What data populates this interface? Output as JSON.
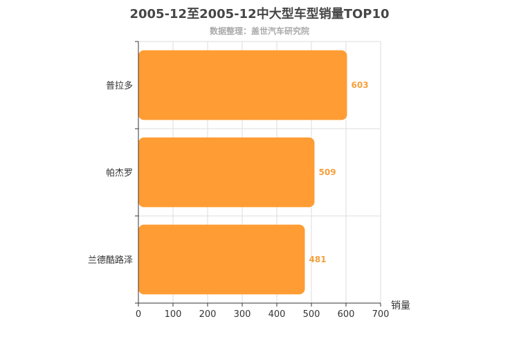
{
  "title": "2005-12至2005-12中大型车型销量TOP10",
  "subtitle": "数据整理：盖世汽车研究院",
  "chart_data": {
    "type": "bar",
    "orientation": "horizontal",
    "categories": [
      "普拉多",
      "帕杰罗",
      "兰德酷路泽"
    ],
    "values": [
      603,
      509,
      481
    ],
    "xlabel": "销量",
    "xlim": [
      0,
      700
    ],
    "xticks": [
      0,
      100,
      200,
      300,
      400,
      500,
      600,
      700
    ],
    "grid": true,
    "bar_color": "#ff9c33",
    "label_color": "#f5a03c"
  }
}
